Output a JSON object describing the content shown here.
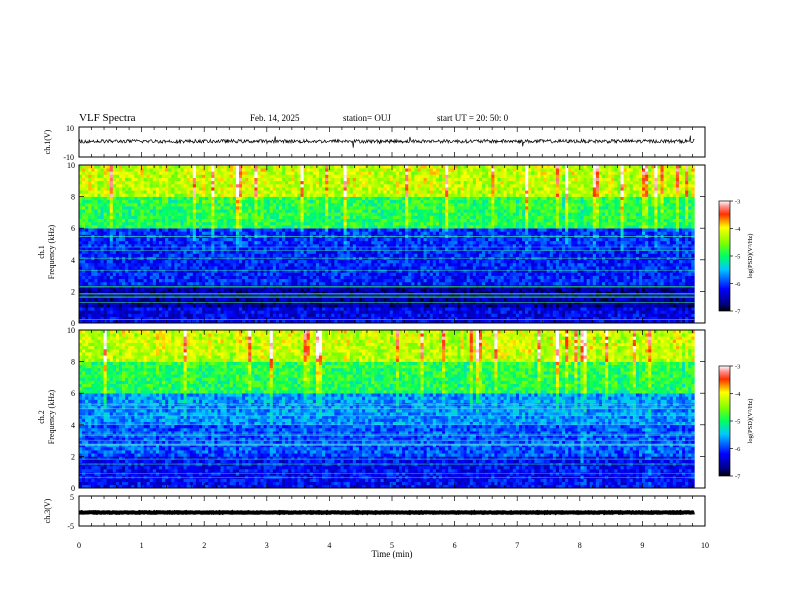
{
  "header": {
    "title": "VLF Spectra",
    "date": "Feb. 14, 2025",
    "station": "station= OUJ",
    "start_ut": "start  UT  =   20: 50: 0"
  },
  "chart_data": [
    {
      "type": "line",
      "panel": "ch1-waveform",
      "ylabel": "ch.1(V)",
      "ylim": [
        -10,
        10
      ],
      "yticks": [
        "10",
        "-10"
      ],
      "xlim": [
        0,
        10
      ],
      "signal": {
        "baseline": 0.5,
        "noise_amplitude": 1.2
      }
    },
    {
      "type": "heatmap",
      "panel": "ch1-spectrogram",
      "ylabel": "ch.1\nFrequency (kHz)",
      "ylim": [
        0,
        10
      ],
      "yticks": [
        "0",
        "2",
        "4",
        "6",
        "8",
        "10"
      ],
      "xlim": [
        0,
        10
      ],
      "data_end_min": 9.83,
      "colorbar": {
        "label": "log(PSD)(V²/Hz)",
        "range": [
          -7,
          -3
        ],
        "ticks": [
          "-3",
          "-4",
          "-5",
          "-6",
          "-7"
        ]
      },
      "bands": [
        {
          "f_min": 0,
          "f_max": 1,
          "level": -6.3
        },
        {
          "f_min": 1,
          "f_max": 2.5,
          "level": -6.6
        },
        {
          "f_min": 2.5,
          "f_max": 6,
          "level": -6.1
        },
        {
          "f_min": 6,
          "f_max": 8,
          "level": -5.0
        },
        {
          "f_min": 8,
          "f_max": 10,
          "level": -4.4
        }
      ]
    },
    {
      "type": "heatmap",
      "panel": "ch2-spectrogram",
      "ylabel": "ch.2\nFrequency (kHz)",
      "ylim": [
        0,
        10
      ],
      "yticks": [
        "0",
        "2",
        "4",
        "6",
        "8",
        "10"
      ],
      "xlim": [
        0,
        10
      ],
      "data_end_min": 9.83,
      "colorbar": {
        "label": "log(PSD)(V²/Hz)",
        "range": [
          -7,
          -3
        ],
        "ticks": [
          "-3",
          "-4",
          "-5",
          "-6",
          "-7"
        ]
      },
      "bands": [
        {
          "f_min": 0,
          "f_max": 2,
          "level": -6.2
        },
        {
          "f_min": 2,
          "f_max": 4,
          "level": -5.9
        },
        {
          "f_min": 4,
          "f_max": 6,
          "level": -5.7
        },
        {
          "f_min": 6,
          "f_max": 8,
          "level": -5.0
        },
        {
          "f_min": 8,
          "f_max": 10,
          "level": -4.4
        }
      ],
      "strong_events_min": [
        8.05,
        9.1
      ]
    },
    {
      "type": "line",
      "panel": "ch3-waveform",
      "ylabel": "ch.3(V)",
      "ylim": [
        -5,
        5
      ],
      "yticks": [
        "5",
        "-5"
      ],
      "xlim": [
        0,
        10
      ],
      "signal": {
        "baseline": -0.5,
        "noise_amplitude": 0.1
      }
    }
  ],
  "x_axis": {
    "label": "Time (min)",
    "ticks": [
      "0",
      "1",
      "2",
      "3",
      "4",
      "5",
      "6",
      "7",
      "8",
      "9",
      "10"
    ]
  },
  "colors": {
    "axis": "#000000",
    "trace": "#000000"
  }
}
